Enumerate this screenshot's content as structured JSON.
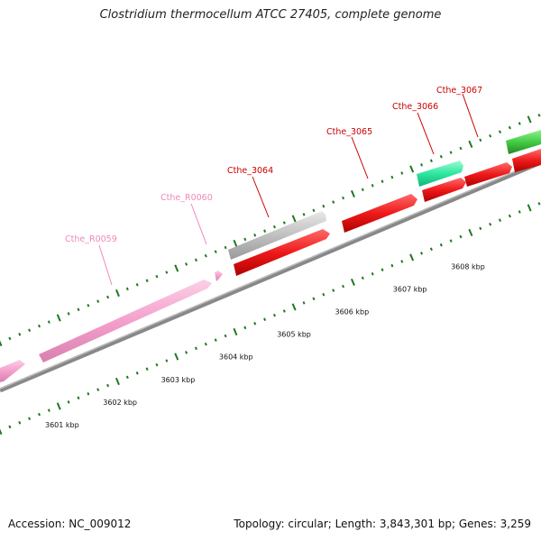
{
  "title": "Clostridium thermocellum ATCC 27405, complete genome",
  "footer": {
    "accession": "Accession: NC_009012",
    "summary": "Topology: circular; Length: 3,843,301 bp; Genes: 3,259"
  },
  "colors": {
    "rna": "#f4a0cc",
    "gene_red": "#e8101a",
    "gene_gray": "#bbbbbb",
    "gene_teal": "#2ee8a0",
    "gene_green": "#44cc44",
    "backbone": "#777777",
    "tick": "#227722",
    "label_red": "#cc0000",
    "label_pink": "#ee88bb"
  },
  "ruler": [
    {
      "kbp": 3601,
      "text": "3601 kbp"
    },
    {
      "kbp": 3602,
      "text": "3602 kbp"
    },
    {
      "kbp": 3603,
      "text": "3603 kbp"
    },
    {
      "kbp": 3604,
      "text": "3604 kbp"
    },
    {
      "kbp": 3605,
      "text": "3605 kbp"
    },
    {
      "kbp": 3606,
      "text": "3606 kbp"
    },
    {
      "kbp": 3607,
      "text": "3607 kbp"
    },
    {
      "kbp": 3608,
      "text": "3608 kbp"
    }
  ],
  "genes": [
    {
      "label": "Cthe_R0059",
      "type": "rna"
    },
    {
      "label": "Cthe_R0060",
      "type": "rna"
    },
    {
      "label": "Cthe_3064",
      "type": "gray"
    },
    {
      "label": "Cthe_3065",
      "type": "red"
    },
    {
      "label": "Cthe_3066",
      "type": "teal"
    },
    {
      "label": "Cthe_3067",
      "type": "red"
    }
  ]
}
